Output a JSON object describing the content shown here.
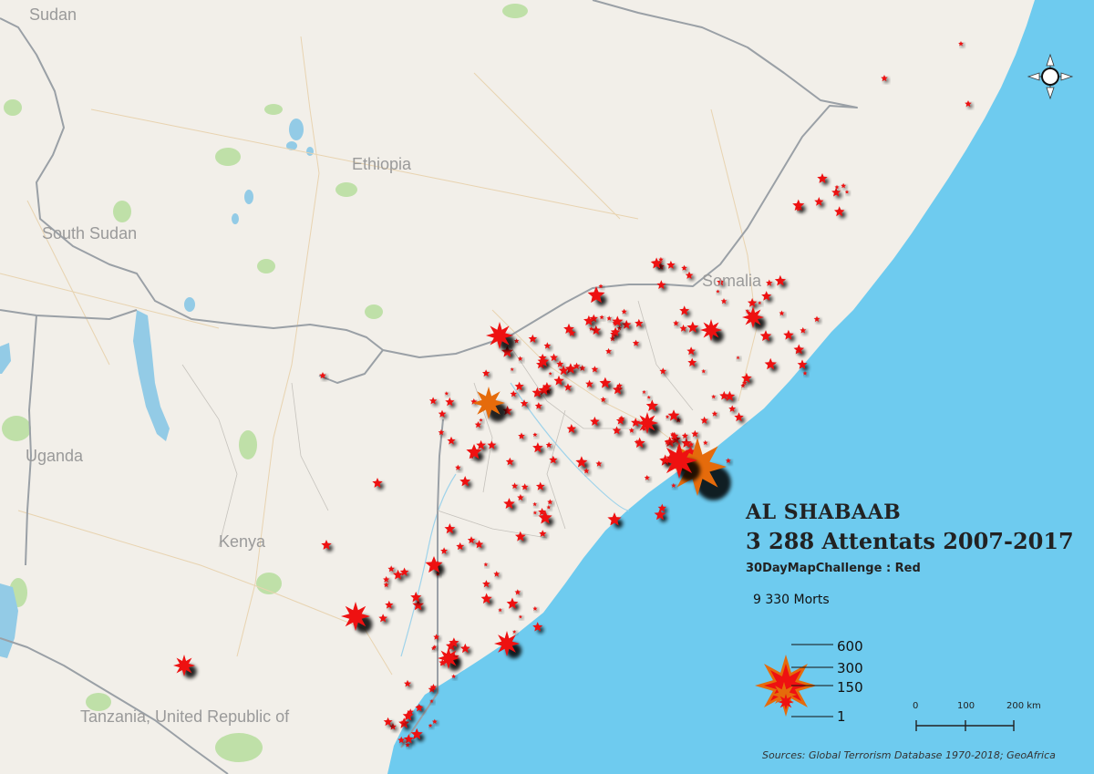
{
  "countries": [
    {
      "id": "sudan",
      "label": "Sudan"
    },
    {
      "id": "ethiopia",
      "label": "Ethiopia"
    },
    {
      "id": "south-sudan",
      "label": "South Sudan"
    },
    {
      "id": "somalia",
      "label": "Somalia"
    },
    {
      "id": "uganda",
      "label": "Uganda"
    },
    {
      "id": "kenya",
      "label": "Kenya"
    },
    {
      "id": "tanzania",
      "label": "Tanzania, United Republic of"
    }
  ],
  "title": {
    "line1": "AL SHABAAB",
    "line2": "3 288 Attentats 2007-2017",
    "line3": "30DayMapChallenge : Red"
  },
  "deaths_label": "9 330 Morts",
  "legend": {
    "labels": [
      "600",
      "300",
      "150",
      "1"
    ]
  },
  "scalebar": {
    "ticks": [
      "0",
      "100",
      "200 km"
    ]
  },
  "sources": "Sources: Global Terrorism Database 1970-2018; GeoAfrica",
  "colors": {
    "land": "#f2efe9",
    "ocean": "#6ecbef",
    "star_red": "#ee1111",
    "star_orange": "#e56b0b",
    "border": "#9aa0a6",
    "lake": "#93cbe6",
    "park": "#bfe0a8"
  },
  "icons": {
    "compass": "north-arrow-icon"
  }
}
